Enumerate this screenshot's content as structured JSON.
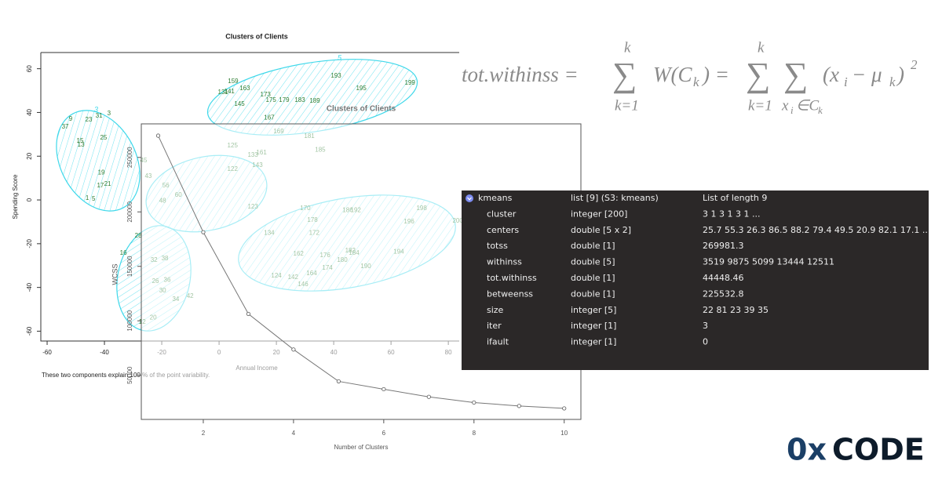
{
  "chart_data": [
    {
      "type": "scatter",
      "title": "Clusters of Clients",
      "ylabel": "Spending Score",
      "xlabel": "Annual Income",
      "caption": "These two components explain 100 % of the point variability.",
      "annotations": [
        "3",
        "5"
      ],
      "color": "#2e7d32",
      "x": [
        -51.8,
        -45.5,
        -41.9,
        -38.4,
        -53.7,
        -48.5,
        -48.2,
        -40.3,
        -41.1,
        -41.4,
        -38.9,
        -46,
        -43.8,
        4.9,
        9.0,
        1.4,
        3.6,
        16.2,
        40.8,
        49.6,
        66.6,
        22.7,
        28.2,
        33.4,
        18.1,
        7.1,
        17.5,
        20.8,
        31.5,
        35.3,
        4.7,
        11.8,
        14.8,
        13.4,
        4.7,
        11.8,
        30.1,
        32.6,
        44.9,
        47.7,
        70.7,
        66.3,
        83.3,
        17.5,
        33.2,
        27.7,
        37.0,
        45.8,
        47.1,
        62.7,
        43.0,
        37.8,
        51.2,
        20.0,
        25.8,
        32.3,
        29.3,
        -33.4,
        -22.7,
        -18.9,
        -22.2,
        -18.1,
        -19.7,
        -15.1,
        -10.1,
        -23.0,
        -26.8,
        -28.2,
        -24.7,
        -26.3,
        -19.7,
        -18.6,
        -14.2
      ],
      "y": [
        36.9,
        36.6,
        38.4,
        39.4,
        33.3,
        26.9,
        25.1,
        28.3,
        12.5,
        6.5,
        7.2,
        0.7,
        0.4,
        54.1,
        50.9,
        49.1,
        49.5,
        48.0,
        56.6,
        50.9,
        53.4,
        45.5,
        45.5,
        45.2,
        45.5,
        43.7,
        37.6,
        31.2,
        29.0,
        22.9,
        24.7,
        20.4,
        21.5,
        15.8,
        14.0,
        -3.2,
        -3.9,
        -9.3,
        -4.7,
        -4.7,
        -3.9,
        -10.0,
        -9.7,
        -15.1,
        -15.1,
        -24.7,
        -25.4,
        -23.3,
        -24.4,
        -23.7,
        -27.6,
        -31.2,
        -30.5,
        -34.8,
        -35.5,
        -33.7,
        -38.7,
        -24.4,
        -27.6,
        -26.9,
        -37.3,
        -36.6,
        -41.6,
        -45.5,
        -44.1,
        -53.8,
        -55.9,
        -16.5,
        10.8,
        17.9,
        -0.4,
        6.5,
        2.2
      ],
      "point_labels": [
        "9",
        "23",
        "31",
        "3",
        "37",
        "15",
        "13",
        "25",
        "19",
        "17",
        "21",
        "1",
        "5",
        "159",
        "163",
        "131",
        "141",
        "173",
        "193",
        "195",
        "199",
        "179",
        "183",
        "189",
        "175",
        "145",
        "167",
        "169",
        "181",
        "185",
        "125",
        "133",
        "161",
        "143",
        "122",
        "123",
        "170",
        "178",
        "186",
        "192",
        "198",
        "196",
        "200",
        "134",
        "172",
        "162",
        "176",
        "182",
        "184",
        "194",
        "180",
        "174",
        "190",
        "124",
        "142",
        "164",
        "146",
        "16",
        "32",
        "38",
        "26",
        "36",
        "30",
        "34",
        "42",
        "20",
        "12",
        "28",
        "43",
        "45",
        "48",
        "56",
        "60"
      ],
      "xlim": [
        -62.2,
        83.8
      ],
      "ylim": [
        -64.5,
        67.4
      ],
      "xticks": [
        -60,
        -40,
        -20,
        0,
        20,
        40,
        60,
        80
      ],
      "yticks": [
        -60,
        -40,
        -20,
        0,
        20,
        40,
        60
      ]
    },
    {
      "type": "line",
      "title": "Clusters of Clients",
      "xlabel": "Number of Clusters",
      "ylabel": "WCSS",
      "color": "#777777",
      "x": [
        1,
        2,
        3,
        4,
        5,
        6,
        7,
        8,
        9,
        10
      ],
      "values": [
        269981,
        181363,
        106348,
        73679,
        44448,
        37233,
        30227,
        25011,
        21850,
        19634
      ],
      "xlim": [
        0.626,
        10.37
      ],
      "ylim": [
        9500,
        280800
      ],
      "xticks": [
        2,
        4,
        6,
        8,
        10
      ],
      "yticks": [
        50000,
        100000,
        150000,
        200000,
        250000
      ]
    }
  ],
  "formula": [
    "tot.withinss = ",
    "∑",
    "W(C",
    "k",
    ") = ",
    "∑",
    "∑",
    "(x",
    "i",
    " − μ",
    "k",
    ")",
    "2",
    "k",
    "k=1",
    "k",
    "k=1",
    "x",
    "i",
    "∈C",
    "k"
  ],
  "table": {
    "header": [
      "kmeans",
      "list [9] (S3: kmeans)",
      "List of length 9"
    ],
    "rows": [
      [
        "cluster",
        "integer [200]",
        "3 1 3 1 3 1 ..."
      ],
      [
        "centers",
        "double [5 x 2]",
        "25.7 55.3 26.3 86.5 88.2 79.4 49.5 20.9 82.1 17.1 ..."
      ],
      [
        "totss",
        "double [1]",
        "269981.3"
      ],
      [
        "withinss",
        "double [5]",
        "3519 9875 5099 13444 12511"
      ],
      [
        "tot.withinss",
        "double [1]",
        "44448.46"
      ],
      [
        "betweenss",
        "double [1]",
        "225532.8"
      ],
      [
        "size",
        "integer [5]",
        "22 81 23 39 35"
      ],
      [
        "iter",
        "integer [1]",
        "3"
      ],
      [
        "ifault",
        "integer [1]",
        "0"
      ]
    ]
  },
  "logo": {
    "prefix": "0x",
    "name": "CODE"
  }
}
